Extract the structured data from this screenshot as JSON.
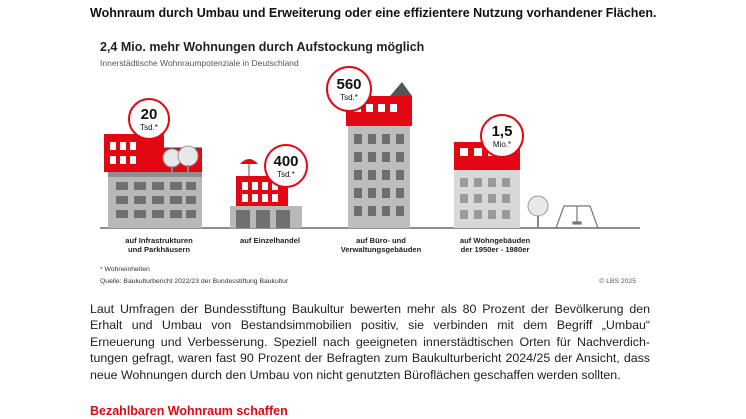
{
  "document": {
    "heading": "Wohnraum durch Umbau und Erweiterung oder eine effizientere Nutzung vorhandener Flächen.",
    "figure": {
      "title": "2,4 Mio. mehr Wohnungen durch Aufstockung möglich",
      "subtitle": "Innerstädtische Wohnraumpotenziale in Deutschland",
      "categories": [
        {
          "value": "20",
          "unit": "Tsd.*",
          "caption_1": "auf Infrastrukturen",
          "caption_2": "und Parkhäusern"
        },
        {
          "value": "400",
          "unit": "Tsd.*",
          "caption_1": "auf Einzelhandel",
          "caption_2": ""
        },
        {
          "value": "560",
          "unit": "Tsd.*",
          "caption_1": "auf Büro- und",
          "caption_2": "Verwaltungsgebäuden"
        },
        {
          "value": "1,5",
          "unit": "Mio.*",
          "caption_1": "auf Wohngebäuden",
          "caption_2": "der 1950er - 1980er"
        }
      ],
      "footnote": "Wohneinheiten",
      "footnote_marker": "*",
      "source": "Quelle: Baukulturbericht 2022/23 der Bundesstiftung Baukultur",
      "credit": "© LBS 2025",
      "colors": {
        "accent": "#e30613",
        "building_grey": "#b8b8b8",
        "dark_grey": "#5a5a5a"
      }
    },
    "paragraph_lines": [
      "Laut Umfragen der Bundesstiftung Baukultur bewerten mehr als 80 Prozent der Bevölkerung den",
      "Erhalt und Umbau von Bestandsimmobilien positiv, sie verbinden mit dem Begriff „Umbau“",
      "Erneuerung und Verbesserung. Speziell nach geeigneten innerstädtischen Orten für Nachverdich-",
      "tungen gefragt, waren fast 90 Prozent der Befragten zum Baukulturbericht 2024/25 der Ansicht, dass",
      "neue Wohnungen durch den Umbau von nicht genutzten Büroflächen geschaffen werden sollten."
    ],
    "subheading": "Bezahlbaren Wohnraum schaffen"
  }
}
